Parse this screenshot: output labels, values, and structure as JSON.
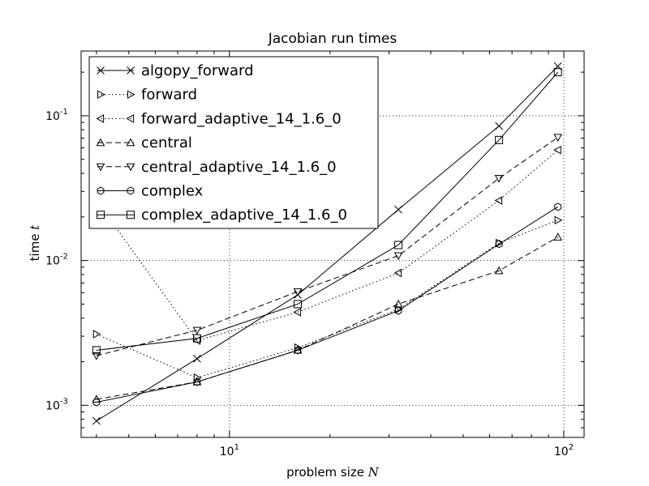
{
  "chart_data": {
    "type": "line",
    "title": "Jacobian run times",
    "xlabel": "problem size N",
    "ylabel": "time t",
    "xscale": "log",
    "yscale": "log",
    "xlim": [
      3.6,
      115
    ],
    "ylim": [
      0.0006,
      0.28
    ],
    "grid": true,
    "legend_position": "top-left",
    "x": [
      4,
      8,
      16,
      32,
      64,
      96
    ],
    "x_ticks": [
      {
        "value": 10,
        "base": "10",
        "exp": "1"
      },
      {
        "value": 100,
        "base": "10",
        "exp": "2"
      }
    ],
    "y_ticks": [
      {
        "value": 0.001,
        "base": "10",
        "exp": "-3"
      },
      {
        "value": 0.01,
        "base": "10",
        "exp": "-2"
      },
      {
        "value": 0.1,
        "base": "10",
        "exp": "-1"
      }
    ],
    "series": [
      {
        "name": "algopy_forward",
        "marker": "x",
        "linestyle": "solid",
        "values": [
          0.00078,
          0.0021,
          0.0058,
          0.0225,
          0.085,
          0.22
        ]
      },
      {
        "name": "forward",
        "marker": "triangle-right",
        "linestyle": "dotted",
        "values": [
          0.0031,
          0.00155,
          0.0025,
          0.0046,
          0.0132,
          0.019
        ]
      },
      {
        "name": "forward_adaptive_14_1.6_0",
        "marker": "triangle-left",
        "linestyle": "dotted",
        "values": [
          0.026,
          0.0028,
          0.0044,
          0.0082,
          0.026,
          0.058
        ]
      },
      {
        "name": "central",
        "marker": "triangle-up",
        "linestyle": "dashed",
        "values": [
          0.0011,
          0.00145,
          0.0024,
          0.005,
          0.0085,
          0.0145
        ]
      },
      {
        "name": "central_adaptive_14_1.6_0",
        "marker": "triangle-down",
        "linestyle": "dashed",
        "values": [
          0.0022,
          0.0033,
          0.0061,
          0.0108,
          0.037,
          0.071
        ]
      },
      {
        "name": "complex",
        "marker": "hexagon",
        "linestyle": "solid",
        "values": [
          0.00105,
          0.00145,
          0.0024,
          0.0045,
          0.013,
          0.0235
        ]
      },
      {
        "name": "complex_adaptive_14_1.6_0",
        "marker": "square",
        "linestyle": "solid",
        "values": [
          0.0024,
          0.0029,
          0.005,
          0.0128,
          0.068,
          0.2
        ]
      }
    ]
  }
}
